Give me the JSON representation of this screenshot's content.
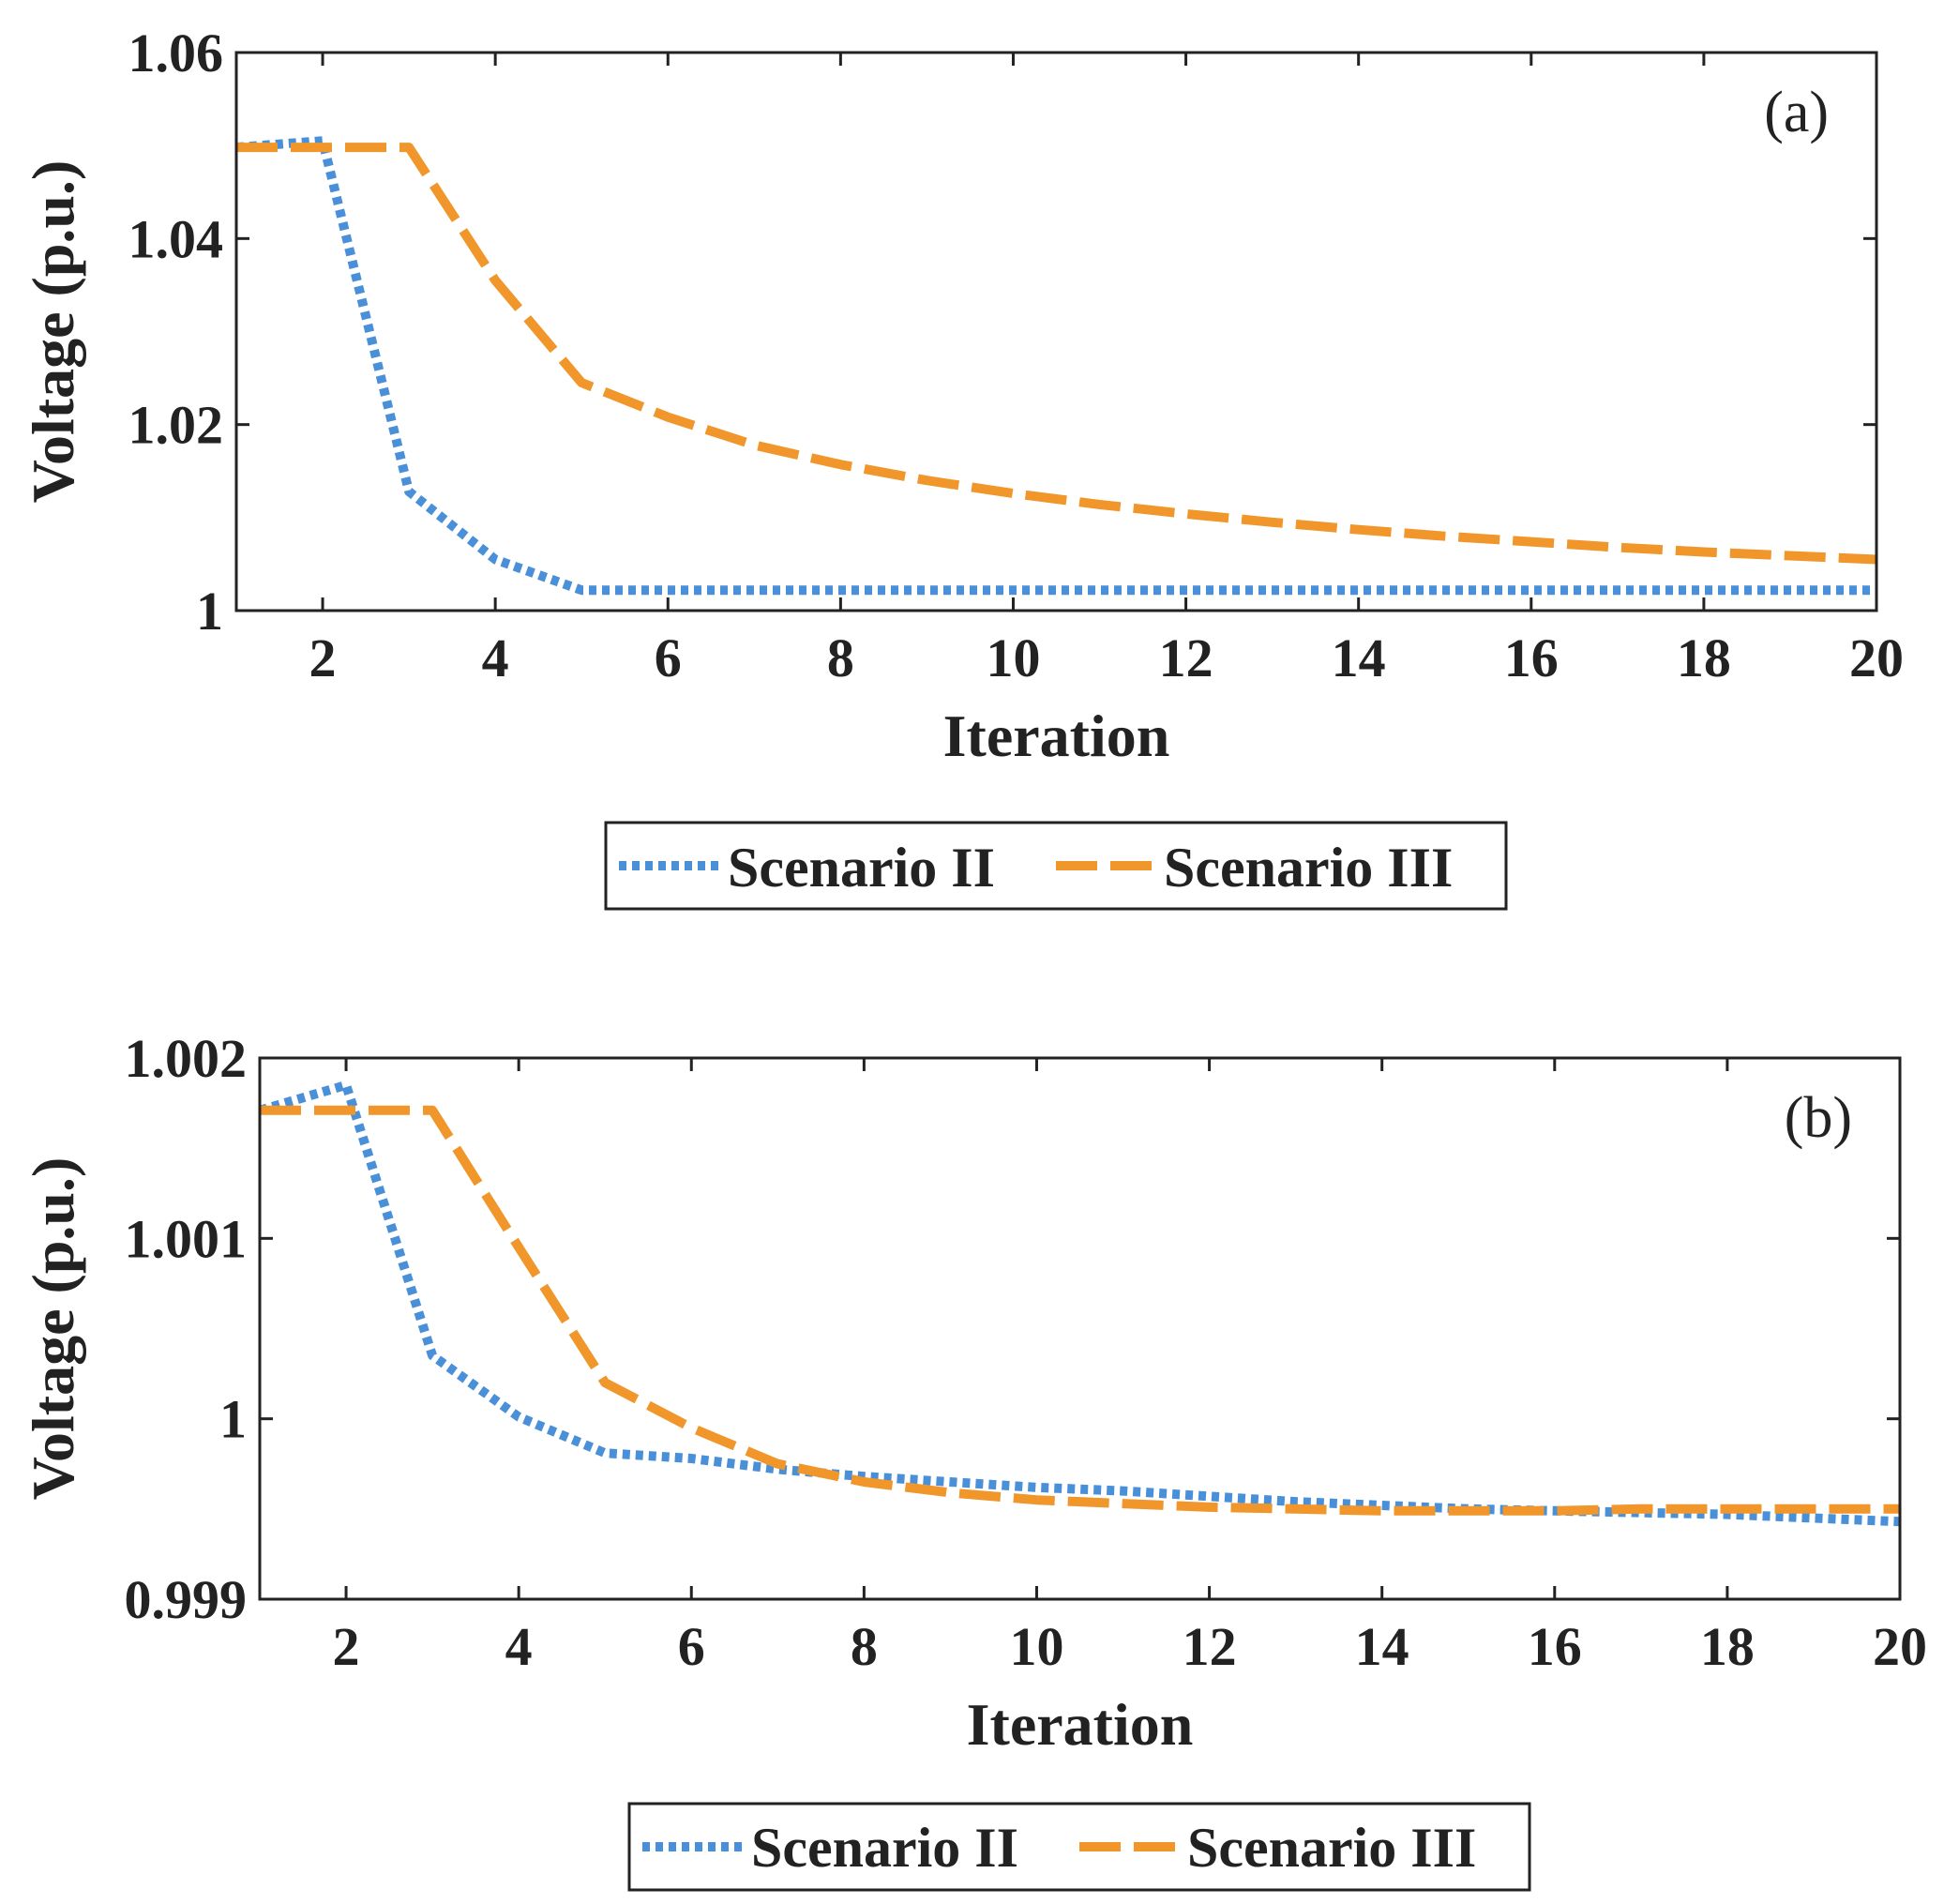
{
  "colors": {
    "scenario_ii": "#4a90d9",
    "scenario_iii": "#f0962a",
    "axes": "#222222"
  },
  "chart_data": [
    {
      "type": "line",
      "panel_label": "(a)",
      "xlabel": "Iteration",
      "ylabel": "Voltage (p.u.)",
      "xlim": [
        1,
        20
      ],
      "ylim": [
        1,
        1.06
      ],
      "xticks": [
        2,
        4,
        6,
        8,
        10,
        12,
        14,
        16,
        18,
        20
      ],
      "xtick_labels": [
        "2",
        "4",
        "6",
        "8",
        "10",
        "12",
        "14",
        "16",
        "18",
        "20"
      ],
      "yticks": [
        1,
        1.02,
        1.04,
        1.06
      ],
      "ytick_labels": [
        "1",
        "1.02",
        "1.04",
        "1.06"
      ],
      "grid": false,
      "legend_position": "bottom",
      "series": [
        {
          "name": "Scenario II",
          "style": "dotted",
          "x": [
            1,
            2,
            3,
            4,
            5,
            6,
            7,
            8,
            9,
            10,
            11,
            12,
            13,
            14,
            15,
            16,
            17,
            18,
            19,
            20
          ],
          "values": [
            1.0498,
            1.0505,
            1.0128,
            1.0055,
            1.0022,
            1.0022,
            1.0022,
            1.0022,
            1.0022,
            1.0022,
            1.0022,
            1.0022,
            1.0022,
            1.0022,
            1.0022,
            1.0022,
            1.0022,
            1.0022,
            1.0022,
            1.0022
          ]
        },
        {
          "name": "Scenario III",
          "style": "dashed",
          "x": [
            1,
            2,
            3,
            4,
            5,
            6,
            7,
            8,
            9,
            10,
            11,
            12,
            13,
            14,
            15,
            16,
            17,
            18,
            19,
            20
          ],
          "values": [
            1.0498,
            1.0498,
            1.0498,
            1.0355,
            1.0245,
            1.0208,
            1.0178,
            1.0157,
            1.014,
            1.0126,
            1.0114,
            1.0104,
            1.0095,
            1.0087,
            1.008,
            1.0074,
            1.0068,
            1.0063,
            1.0059,
            1.0055
          ]
        }
      ]
    },
    {
      "type": "line",
      "panel_label": "(b)",
      "xlabel": "Iteration",
      "ylabel": "Voltage (p.u.)",
      "xlim": [
        1,
        20
      ],
      "ylim": [
        0.999,
        1.002
      ],
      "xticks": [
        2,
        4,
        6,
        8,
        10,
        12,
        14,
        16,
        18,
        20
      ],
      "xtick_labels": [
        "2",
        "4",
        "6",
        "8",
        "10",
        "12",
        "14",
        "16",
        "18",
        "20"
      ],
      "yticks": [
        0.999,
        1.0,
        1.001,
        1.002
      ],
      "ytick_labels": [
        "0.999",
        "1",
        "1.001",
        "1.002"
      ],
      "grid": false,
      "legend_position": "bottom",
      "series": [
        {
          "name": "Scenario II",
          "style": "dotted",
          "x": [
            1,
            2,
            3,
            4,
            5,
            6,
            7,
            8,
            9,
            10,
            11,
            12,
            13,
            14,
            15,
            16,
            17,
            18,
            19,
            20
          ],
          "values": [
            1.00171,
            1.00185,
            1.00035,
            1.00001,
            0.99981,
            0.99978,
            0.99972,
            0.99968,
            0.99965,
            0.99962,
            0.9996,
            0.99957,
            0.99954,
            0.99952,
            0.9995,
            0.99949,
            0.99948,
            0.99947,
            0.99945,
            0.99943
          ]
        },
        {
          "name": "Scenario III",
          "style": "dashed",
          "x": [
            1,
            2,
            3,
            4,
            5,
            6,
            7,
            8,
            9,
            10,
            11,
            12,
            13,
            14,
            15,
            16,
            17,
            18,
            19,
            20
          ],
          "values": [
            1.00171,
            1.00171,
            1.00171,
            1.00095,
            1.0002,
            0.99995,
            0.99975,
            0.99965,
            0.99959,
            0.99955,
            0.99953,
            0.99951,
            0.9995,
            0.99949,
            0.99949,
            0.99949,
            0.9995,
            0.9995,
            0.9995,
            0.9995
          ]
        }
      ]
    }
  ]
}
